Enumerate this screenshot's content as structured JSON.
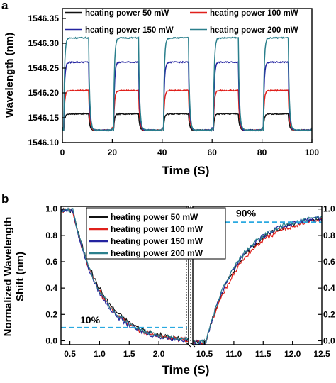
{
  "chart_data": [
    {
      "panel_label": "a",
      "type": "line",
      "xlabel": "Time (S)",
      "ylabel": "Wavelength (nm)",
      "xlim": [
        0,
        100
      ],
      "ylim": [
        1546.1,
        1546.37
      ],
      "xticks": [
        "0",
        "20",
        "40",
        "60",
        "80",
        "100"
      ],
      "yticks": [
        "1546.10",
        "1546.15",
        "1546.20",
        "1546.25",
        "1546.30",
        "1546.35"
      ],
      "legend_position": "top",
      "cycle": {
        "period": 20,
        "on_start": 0.5,
        "on_end": 10.5,
        "num_cycles": 5
      },
      "baseline": 1546.125,
      "series": [
        {
          "name": "heating power 50 mW",
          "color": "#111111",
          "high": 1546.158
        },
        {
          "name": "heating power 100 mW",
          "color": "#e0201b",
          "high": 1546.205
        },
        {
          "name": "heating power 150 mW",
          "color": "#2323a0",
          "high": 1546.262
        },
        {
          "name": "heating power 200 mW",
          "color": "#2a7f8c",
          "high": 1546.311
        }
      ]
    },
    {
      "panel_label": "b",
      "type": "line",
      "xlabel": "Time (S)",
      "ylabel": "Normalized Wavelength Shift (nm)",
      "ylim": [
        -0.03,
        1.02
      ],
      "yticks": [
        "0.0",
        "0.2",
        "0.4",
        "0.6",
        "0.8",
        "1.0"
      ],
      "right_yticks": [
        "0.0",
        "0.2",
        "0.4",
        "0.6",
        "0.8",
        "1.0"
      ],
      "left_segment": {
        "xlim": [
          0.35,
          2.5
        ],
        "xticks": [
          "0.5",
          "1.0",
          "1.5",
          "2.0"
        ]
      },
      "right_segment": {
        "xlim": [
          10.3,
          12.5
        ],
        "xticks": [
          "10.5",
          "11.0",
          "11.5",
          "12.0",
          "12.5"
        ]
      },
      "annotations": [
        {
          "text": "10%",
          "value": 0.1
        },
        {
          "text": "90%",
          "value": 0.9
        }
      ],
      "legend_position": "top-center",
      "series": [
        {
          "name": "heating power 50 mW",
          "color": "#111111",
          "fall_tau": 0.5,
          "rise_tau": 0.58
        },
        {
          "name": "heating power 100 mW",
          "color": "#e0201b",
          "fall_tau": 0.47,
          "rise_tau": 0.62
        },
        {
          "name": "heating power 150 mW",
          "color": "#2323a0",
          "fall_tau": 0.46,
          "rise_tau": 0.56
        },
        {
          "name": "heating power 200 mW",
          "color": "#2a7f8c",
          "fall_tau": 0.48,
          "rise_tau": 0.55
        }
      ]
    }
  ]
}
